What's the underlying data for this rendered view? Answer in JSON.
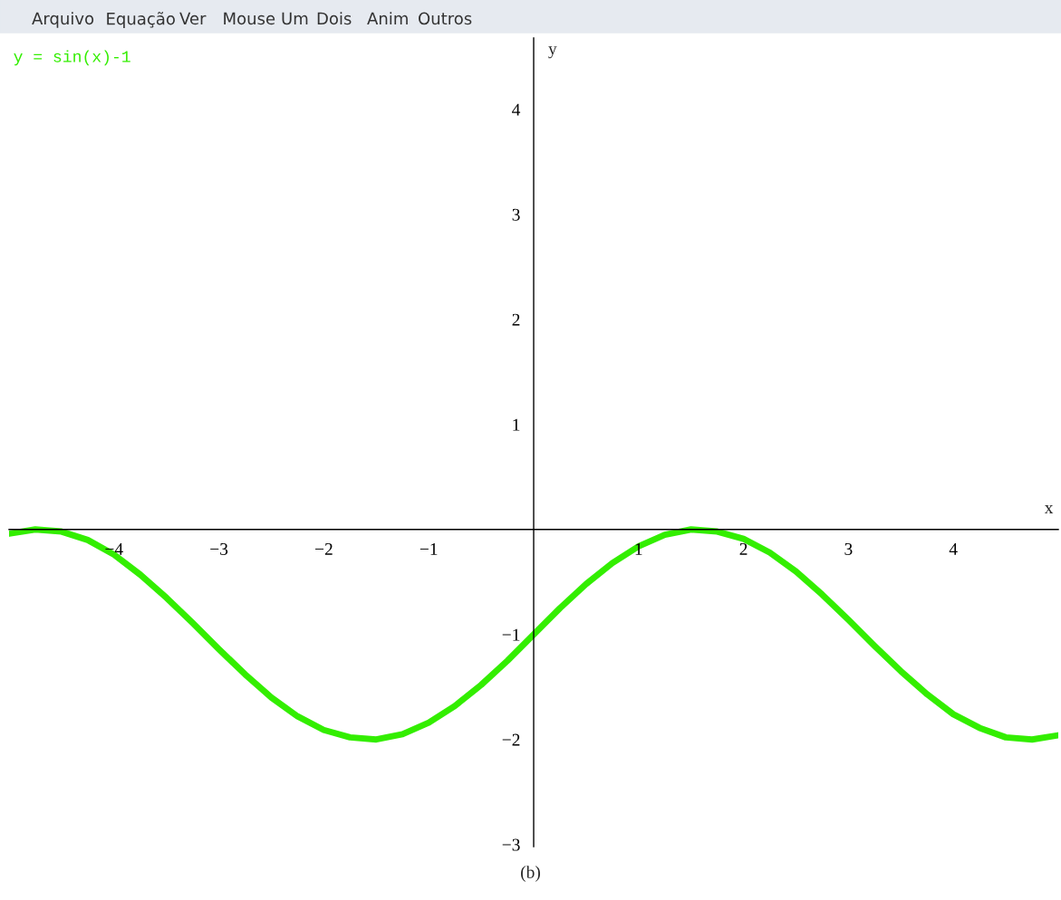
{
  "chart_data": {
    "type": "line",
    "title": "y = sin(x)-1",
    "xlabel": "x",
    "ylabel": "y",
    "annotations": [
      "Arquivo",
      "Equação",
      "Ver",
      "Mouse",
      "Um",
      "Dois",
      "Anim",
      "Outros",
      "(b)"
    ],
    "xlim": [
      -5,
      5
    ],
    "ylim": [
      -3.02,
      4.68
    ],
    "xticks": [
      -4,
      -3,
      -2,
      -1,
      1,
      2,
      3,
      4
    ],
    "yticks": [
      -3,
      -2,
      -1,
      1,
      2,
      3,
      4
    ],
    "grid": false,
    "legend": false,
    "marker": "none",
    "line_style": "solid",
    "series": [
      {
        "color": "#33ee00",
        "x": [
          -5,
          -4.75,
          -4.5,
          -4.25,
          -4,
          -3.75,
          -3.5,
          -3.25,
          -3,
          -2.75,
          -2.5,
          -2.25,
          -2,
          -1.75,
          -1.5,
          -1.25,
          -1,
          -0.75,
          -0.5,
          -0.25,
          0,
          0.25,
          0.5,
          0.75,
          1,
          1.25,
          1.5,
          1.75,
          2,
          2.25,
          2.5,
          2.75,
          3,
          3.25,
          3.5,
          3.75,
          4,
          4.25,
          4.5,
          4.75,
          5
        ],
        "values": [
          -0.04,
          0,
          -0.02,
          -0.1,
          -0.24,
          -0.43,
          -0.65,
          -0.89,
          -1.14,
          -1.38,
          -1.6,
          -1.78,
          -1.91,
          -1.98,
          -2,
          -1.95,
          -1.84,
          -1.68,
          -1.48,
          -1.25,
          -1,
          -0.75,
          -0.52,
          -0.32,
          -0.16,
          -0.05,
          0,
          -0.02,
          -0.09,
          -0.22,
          -0.4,
          -0.62,
          -0.86,
          -1.11,
          -1.35,
          -1.57,
          -1.76,
          -1.89,
          -1.98,
          -2,
          -1.96
        ]
      }
    ]
  }
}
